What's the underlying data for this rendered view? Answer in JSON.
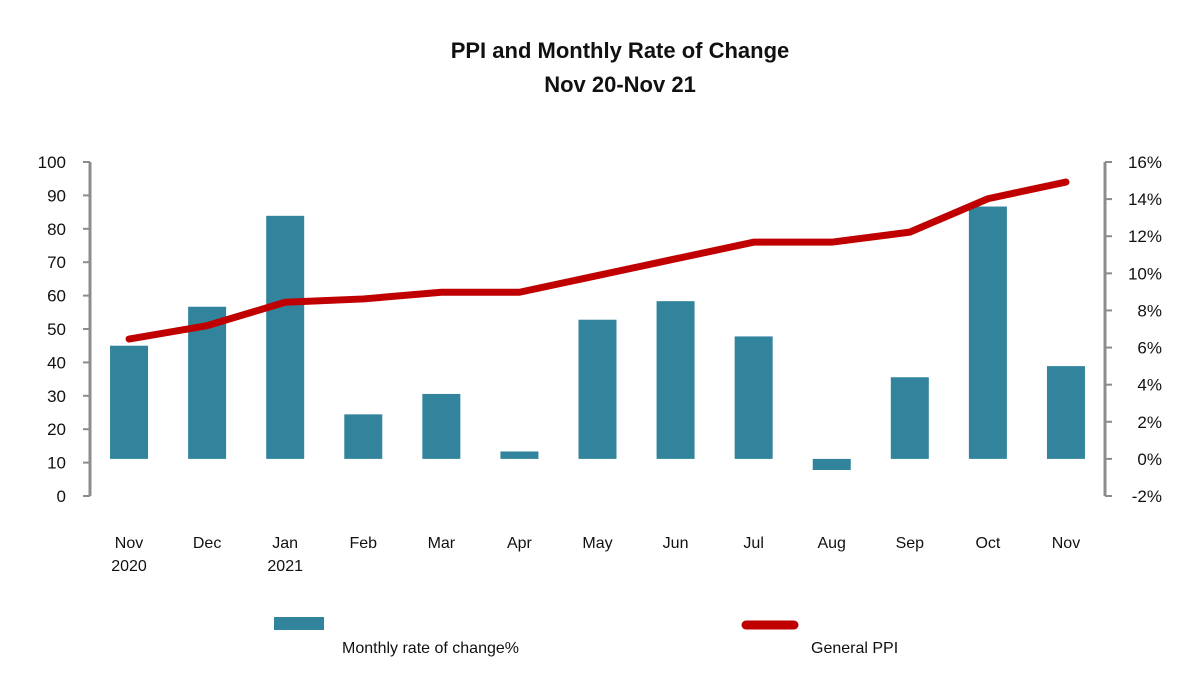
{
  "chart_data": {
    "type": "bar",
    "title": "PPI and Monthly Rate of Change",
    "subtitle": "Nov 20-Nov 21",
    "categories": [
      [
        "Nov",
        "2020"
      ],
      [
        "Dec"
      ],
      [
        "Jan",
        "2021"
      ],
      [
        "Feb"
      ],
      [
        "Mar"
      ],
      [
        "Apr"
      ],
      [
        "May"
      ],
      [
        "Jun"
      ],
      [
        "Jul"
      ],
      [
        "Aug"
      ],
      [
        "Sep"
      ],
      [
        "Oct"
      ],
      [
        "Nov"
      ]
    ],
    "left_axis": {
      "ylim": [
        0,
        100
      ],
      "ticks": [
        "0",
        "10",
        "20",
        "30",
        "40",
        "50",
        "60",
        "70",
        "80",
        "90",
        "100"
      ]
    },
    "right_axis": {
      "ylim": [
        -2,
        16
      ],
      "ticks": [
        "-2%",
        "0%",
        "2%",
        "4%",
        "6%",
        "8%",
        "10%",
        "12%",
        "14%",
        "16%"
      ]
    },
    "series": [
      {
        "name": "Monthly rate of change%",
        "type": "bar",
        "axis": "right",
        "color": "#31849b",
        "values": [
          6.1,
          8.2,
          13.1,
          2.4,
          3.5,
          0.4,
          7.5,
          8.5,
          6.6,
          -0.6,
          4.4,
          13.6,
          5.0
        ]
      },
      {
        "name": "General PPI",
        "type": "line",
        "axis": "left",
        "color": "#c00000",
        "values": [
          47,
          51,
          58,
          59,
          61,
          61,
          66,
          71,
          76,
          76,
          79,
          89,
          94
        ]
      }
    ],
    "grid": false,
    "legend_position": "bottom"
  }
}
